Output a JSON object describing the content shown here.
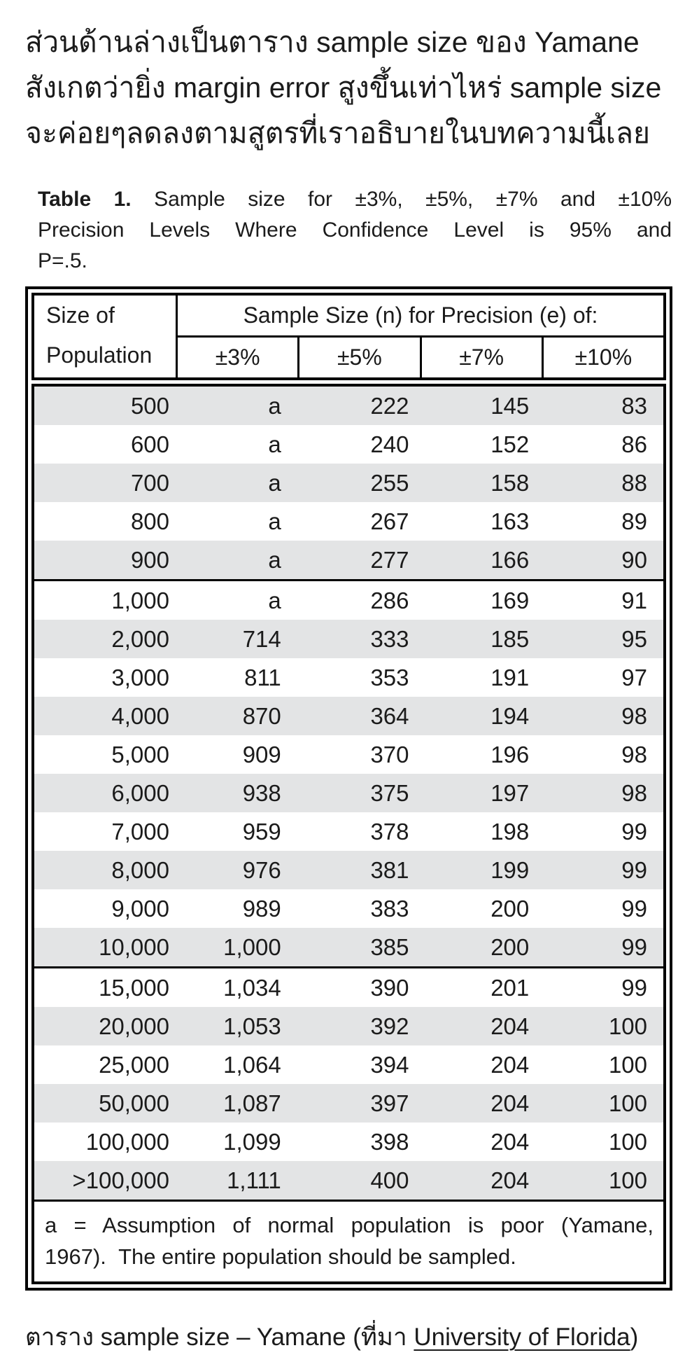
{
  "intro": {
    "lines": [
      "ส่วนด้านล่างเป็นตาราง sample size ของ Yamane",
      "สังเกตว่ายิ่ง margin error สูงขึ้นเท่าไหร่ sample size",
      "จะค่อยๆลดลงตามสูตรที่เราอธิบายในบทความนี้เลย"
    ]
  },
  "table": {
    "title": {
      "line1_bold": "Table 1.",
      "line1_rest": "Sample size for ±3%, ±5%, ±7% and ±10%",
      "line2": "Precision Levels Where Confidence Level is 95% and",
      "line3": "P=.5."
    },
    "header": {
      "size_of": "Size of",
      "population": "Population",
      "span_label": "Sample Size (n) for Precision (e) of:",
      "precision_cols": [
        "±3%",
        "±5%",
        "±7%",
        "±10%"
      ]
    },
    "groups": [
      {
        "rows": [
          [
            "500",
            "a",
            "222",
            "145",
            "83"
          ],
          [
            "600",
            "a",
            "240",
            "152",
            "86"
          ],
          [
            "700",
            "a",
            "255",
            "158",
            "88"
          ],
          [
            "800",
            "a",
            "267",
            "163",
            "89"
          ],
          [
            "900",
            "a",
            "277",
            "166",
            "90"
          ]
        ]
      },
      {
        "rows": [
          [
            "1,000",
            "a",
            "286",
            "169",
            "91"
          ],
          [
            "2,000",
            "714",
            "333",
            "185",
            "95"
          ],
          [
            "3,000",
            "811",
            "353",
            "191",
            "97"
          ],
          [
            "4,000",
            "870",
            "364",
            "194",
            "98"
          ],
          [
            "5,000",
            "909",
            "370",
            "196",
            "98"
          ],
          [
            "6,000",
            "938",
            "375",
            "197",
            "98"
          ],
          [
            "7,000",
            "959",
            "378",
            "198",
            "99"
          ],
          [
            "8,000",
            "976",
            "381",
            "199",
            "99"
          ],
          [
            "9,000",
            "989",
            "383",
            "200",
            "99"
          ],
          [
            "10,000",
            "1,000",
            "385",
            "200",
            "99"
          ]
        ]
      },
      {
        "rows": [
          [
            "15,000",
            "1,034",
            "390",
            "201",
            "99"
          ],
          [
            "20,000",
            "1,053",
            "392",
            "204",
            "100"
          ],
          [
            "25,000",
            "1,064",
            "394",
            "204",
            "100"
          ],
          [
            "50,000",
            "1,087",
            "397",
            "204",
            "100"
          ],
          [
            "100,000",
            "1,099",
            "398",
            "204",
            "100"
          ],
          [
            ">100,000",
            "1,111",
            "400",
            "204",
            "100"
          ]
        ]
      }
    ],
    "footnote_line1": "a = Assumption of normal population is poor (Yamane,",
    "footnote_line2": "1967).  The entire population should be sampled."
  },
  "caption": {
    "prefix": "ตาราง sample size – Yamane (ที่มา ",
    "link_text": "University of Florida",
    "suffix": ")"
  },
  "colors": {
    "row_shade": "#e3e4e5",
    "border": "#000000",
    "text": "#1b1b1b"
  }
}
